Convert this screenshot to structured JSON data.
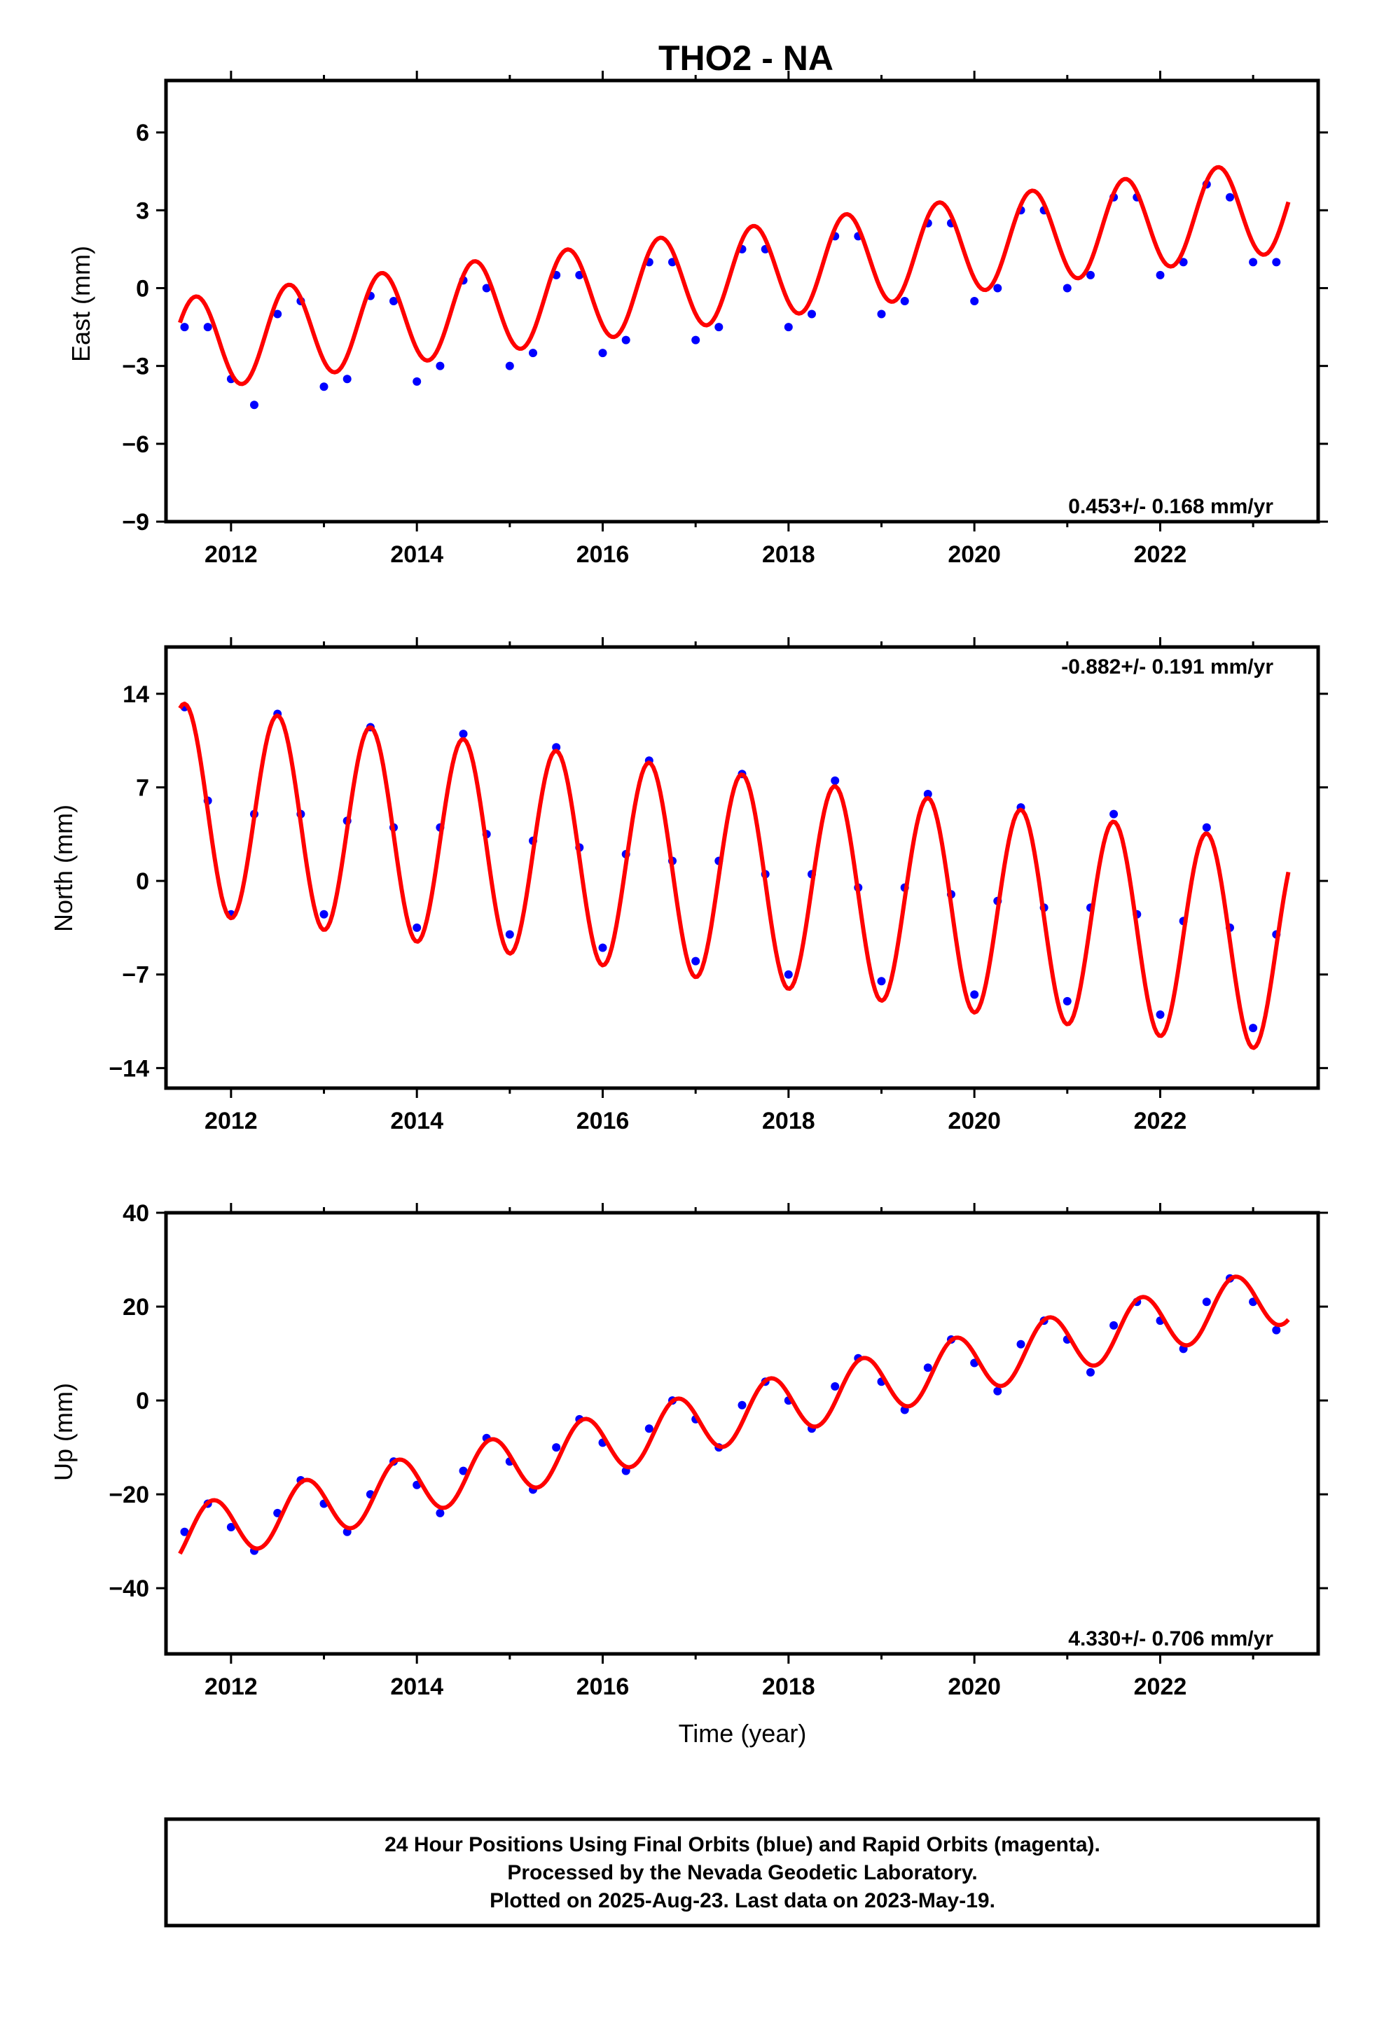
{
  "chart_data": {
    "title": "THO2 - NA",
    "type": "scatter",
    "xlabel": "Time (year)",
    "xlim": [
      2011.3,
      2023.7
    ],
    "xticks": [
      2012,
      2014,
      2016,
      2018,
      2020,
      2022
    ],
    "panels": [
      {
        "name": "east",
        "ylabel": "East (mm)",
        "ylim": [
          -9,
          8
        ],
        "yticks": [
          6,
          3,
          0,
          -3,
          -6,
          -9
        ],
        "rate_label": "0.453+/- 0.168 mm/yr",
        "rate_label_position": "bottom-right",
        "model": {
          "start": 2011.45,
          "end": 2023.38,
          "offset": -2.2,
          "trend": 0.453,
          "amplitude": 1.8,
          "peak_phase": 0.62
        },
        "series": [
          {
            "label": "Final Orbits",
            "color": "#0000ff",
            "style": "points",
            "x": [
              2011.5,
              2011.75,
              2012.0,
              2012.25,
              2012.5,
              2012.75,
              2013.0,
              2013.25,
              2013.5,
              2013.75,
              2014.0,
              2014.25,
              2014.5,
              2014.75,
              2015.0,
              2015.25,
              2015.5,
              2015.75,
              2016.0,
              2016.25,
              2016.5,
              2016.75,
              2017.0,
              2017.25,
              2017.5,
              2017.75,
              2018.0,
              2018.25,
              2018.5,
              2018.75,
              2019.0,
              2019.25,
              2019.5,
              2019.75,
              2020.0,
              2020.25,
              2020.5,
              2020.75,
              2021.0,
              2021.25,
              2021.5,
              2021.75,
              2022.0,
              2022.25,
              2022.5,
              2022.75,
              2023.0,
              2023.25
            ],
            "y": [
              -1.5,
              -1.5,
              -3.5,
              -4.5,
              -1.0,
              -0.5,
              -3.8,
              -3.5,
              -0.3,
              -0.5,
              -3.6,
              -3.0,
              0.3,
              0.0,
              -3.0,
              -2.5,
              0.5,
              0.5,
              -2.5,
              -2.0,
              1.0,
              1.0,
              -2.0,
              -1.5,
              1.5,
              1.5,
              -1.5,
              -1.0,
              2.0,
              2.0,
              -1.0,
              -0.5,
              2.5,
              2.5,
              -0.5,
              0.0,
              3.0,
              3.0,
              0.0,
              0.5,
              3.5,
              3.5,
              0.5,
              1.0,
              4.0,
              3.5,
              1.0,
              1.0
            ]
          },
          {
            "label": "Model",
            "color": "#ff0000",
            "style": "line"
          }
        ]
      },
      {
        "name": "north",
        "ylabel": "North (mm)",
        "ylim": [
          -15.5,
          17.5
        ],
        "yticks": [
          14,
          7,
          0,
          -7,
          -14
        ],
        "rate_label": "-0.882+/- 0.191 mm/yr",
        "rate_label_position": "top-right",
        "model": {
          "start": 2011.45,
          "end": 2023.38,
          "offset": 5.5,
          "trend": -0.882,
          "amplitude": 7.8,
          "peak_phase": 0.5
        },
        "series": [
          {
            "label": "Final Orbits",
            "color": "#0000ff",
            "style": "points",
            "x": [
              2011.5,
              2011.75,
              2012.0,
              2012.25,
              2012.5,
              2012.75,
              2013.0,
              2013.25,
              2013.5,
              2013.75,
              2014.0,
              2014.25,
              2014.5,
              2014.75,
              2015.0,
              2015.25,
              2015.5,
              2015.75,
              2016.0,
              2016.25,
              2016.5,
              2016.75,
              2017.0,
              2017.25,
              2017.5,
              2017.75,
              2018.0,
              2018.25,
              2018.5,
              2018.75,
              2019.0,
              2019.25,
              2019.5,
              2019.75,
              2020.0,
              2020.25,
              2020.5,
              2020.75,
              2021.0,
              2021.25,
              2021.5,
              2021.75,
              2022.0,
              2022.25,
              2022.5,
              2022.75,
              2023.0,
              2023.25
            ],
            "y": [
              13.0,
              6.0,
              -2.5,
              5.0,
              12.5,
              5.0,
              -2.5,
              4.5,
              11.5,
              4.0,
              -3.5,
              4.0,
              11.0,
              3.5,
              -4.0,
              3.0,
              10.0,
              2.5,
              -5.0,
              2.0,
              9.0,
              1.5,
              -6.0,
              1.5,
              8.0,
              0.5,
              -7.0,
              0.5,
              7.5,
              -0.5,
              -7.5,
              -0.5,
              6.5,
              -1.0,
              -8.5,
              -1.5,
              5.5,
              -2.0,
              -9.0,
              -2.0,
              5.0,
              -2.5,
              -10.0,
              -3.0,
              4.0,
              -3.5,
              -11.0,
              -4.0
            ]
          },
          {
            "label": "Model",
            "color": "#ff0000",
            "style": "line"
          }
        ]
      },
      {
        "name": "up",
        "ylabel": "Up (mm)",
        "ylim": [
          -54,
          40
        ],
        "yticks": [
          40,
          20,
          0,
          -20,
          -40
        ],
        "rate_label": "4.330+/- 0.706 mm/yr",
        "rate_label_position": "bottom-right",
        "model": {
          "start": 2011.45,
          "end": 2023.38,
          "offset": -29.0,
          "trend": 4.33,
          "amplitude": 6.2,
          "peak_phase": 0.8
        },
        "series": [
          {
            "label": "Final Orbits",
            "color": "#0000ff",
            "style": "points",
            "x": [
              2011.5,
              2011.75,
              2012.0,
              2012.25,
              2012.5,
              2012.75,
              2013.0,
              2013.25,
              2013.5,
              2013.75,
              2014.0,
              2014.25,
              2014.5,
              2014.75,
              2015.0,
              2015.25,
              2015.5,
              2015.75,
              2016.0,
              2016.25,
              2016.5,
              2016.75,
              2017.0,
              2017.25,
              2017.5,
              2017.75,
              2018.0,
              2018.25,
              2018.5,
              2018.75,
              2019.0,
              2019.25,
              2019.5,
              2019.75,
              2020.0,
              2020.25,
              2020.5,
              2020.75,
              2021.0,
              2021.25,
              2021.5,
              2021.75,
              2022.0,
              2022.25,
              2022.5,
              2022.75,
              2023.0,
              2023.25
            ],
            "y": [
              -28.0,
              -22.0,
              -27.0,
              -32.0,
              -24.0,
              -17.0,
              -22.0,
              -28.0,
              -20.0,
              -13.0,
              -18.0,
              -24.0,
              -15.0,
              -8.0,
              -13.0,
              -19.0,
              -10.0,
              -4.0,
              -9.0,
              -15.0,
              -6.0,
              0.0,
              -4.0,
              -10.0,
              -1.0,
              4.0,
              0.0,
              -6.0,
              3.0,
              9.0,
              4.0,
              -2.0,
              7.0,
              13.0,
              8.0,
              2.0,
              12.0,
              17.0,
              13.0,
              6.0,
              16.0,
              21.0,
              17.0,
              11.0,
              21.0,
              26.0,
              21.0,
              15.0
            ]
          },
          {
            "label": "Model",
            "color": "#ff0000",
            "style": "line"
          }
        ]
      }
    ]
  },
  "footer": {
    "line1": "24 Hour Positions Using Final Orbits (blue) and Rapid Orbits (magenta).",
    "line2": "Processed by the Nevada Geodetic Laboratory.",
    "line3": "Plotted on 2025-Aug-23. Last data on 2023-May-19."
  },
  "colors": {
    "points": "#0000ff",
    "model": "#ff0000",
    "frame": "#000000"
  }
}
